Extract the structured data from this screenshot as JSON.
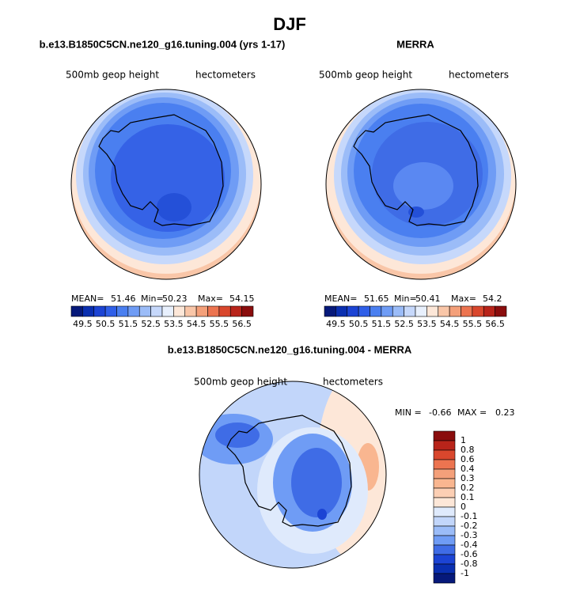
{
  "title": "DJF",
  "panels": [
    {
      "title": "b.e13.B1850C5CN.ne120_g16.tuning.004 (yrs 1-17)",
      "variable": "500mb geop height",
      "units": "hectometers",
      "stats": [
        {
          "label": "MEAN=",
          "value": 51.46
        },
        {
          "label": "Min=",
          "value": 50.23
        },
        {
          "label": "Max=",
          "value": 54.15
        }
      ],
      "colorbar": {
        "levels": [
          49.5,
          50.5,
          51.5,
          52.5,
          53.5,
          54.5,
          55.5,
          56.5
        ],
        "colors": [
          "#06197a",
          "#0a2fb0",
          "#1c44d4",
          "#2f5fe8",
          "#4a7ff0",
          "#6f9cf5",
          "#9bbcf8",
          "#c6d8fb",
          "#e8f0fd",
          "#fde7d8",
          "#f9c6a8",
          "#f4a07a",
          "#ec7450",
          "#d9472d",
          "#b8241a",
          "#8a0d0d"
        ]
      }
    },
    {
      "title": "MERRA",
      "variable": "500mb geop height",
      "units": "hectometers",
      "stats": [
        {
          "label": "MEAN=",
          "value": 51.65
        },
        {
          "label": "Min=",
          "value": 50.41
        },
        {
          "label": "Max=",
          "value": 54.2
        }
      ],
      "colorbar": {
        "levels": [
          49.5,
          50.5,
          51.5,
          52.5,
          53.5,
          54.5,
          55.5,
          56.5
        ],
        "colors": [
          "#06197a",
          "#0a2fb0",
          "#1c44d4",
          "#2f5fe8",
          "#4a7ff0",
          "#6f9cf5",
          "#9bbcf8",
          "#c6d8fb",
          "#e8f0fd",
          "#fde7d8",
          "#f9c6a8",
          "#f4a07a",
          "#ec7450",
          "#d9472d",
          "#b8241a",
          "#8a0d0d"
        ]
      }
    },
    {
      "title": "b.e13.B1850C5CN.ne120_g16.tuning.004 - MERRA",
      "variable": "500mb geop height",
      "units": "hectometers",
      "stats": [
        {
          "label": "MIN =",
          "value": -0.66
        },
        {
          "label": "MAX =",
          "value": 0.23
        }
      ],
      "colorbar": {
        "levels": [
          1,
          0.8,
          0.6,
          0.4,
          0.3,
          0.2,
          0.1,
          0,
          -0.1,
          -0.2,
          -0.3,
          -0.4,
          -0.6,
          -0.8,
          -1
        ],
        "colors": [
          "#8a0d0d",
          "#b8241a",
          "#d9472d",
          "#ec7450",
          "#f4a07a",
          "#f9b690",
          "#fccfb4",
          "#fde7d8",
          "#dfeafc",
          "#c2d6fa",
          "#9bbcf8",
          "#6f9cf5",
          "#3f6ce6",
          "#1c44d4",
          "#0a2fb0",
          "#06197a"
        ]
      }
    }
  ]
}
